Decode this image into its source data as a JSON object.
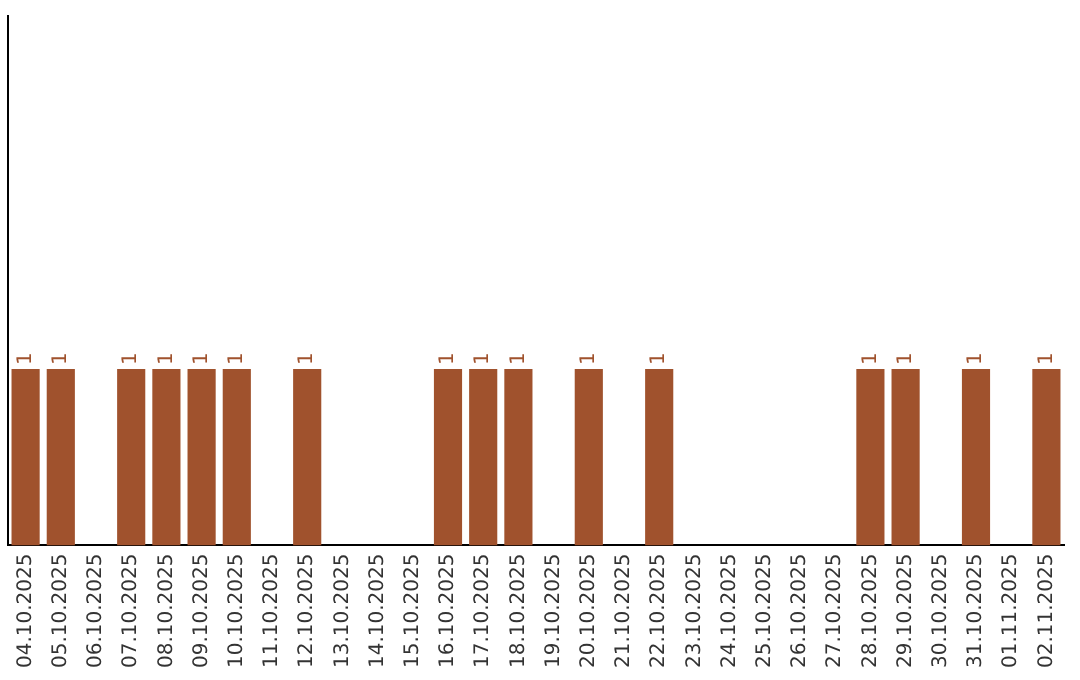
{
  "chart_data": {
    "type": "bar",
    "categories": [
      "04.10.2025",
      "05.10.2025",
      "06.10.2025",
      "07.10.2025",
      "08.10.2025",
      "09.10.2025",
      "10.10.2025",
      "11.10.2025",
      "12.10.2025",
      "13.10.2025",
      "14.10.2025",
      "15.10.2025",
      "16.10.2025",
      "17.10.2025",
      "18.10.2025",
      "19.10.2025",
      "20.10.2025",
      "21.10.2025",
      "22.10.2025",
      "23.10.2025",
      "24.10.2025",
      "25.10.2025",
      "26.10.2025",
      "27.10.2025",
      "28.10.2025",
      "29.10.2025",
      "30.10.2025",
      "31.10.2025",
      "01.11.2025",
      "02.11.2025"
    ],
    "values": [
      1,
      1,
      0,
      1,
      1,
      1,
      1,
      0,
      1,
      0,
      0,
      0,
      1,
      1,
      1,
      0,
      1,
      0,
      1,
      0,
      0,
      0,
      0,
      0,
      1,
      1,
      0,
      1,
      0,
      1
    ],
    "value_labels": [
      "1",
      "1",
      null,
      "1",
      "1",
      "1",
      "1",
      null,
      "1",
      null,
      null,
      null,
      "1",
      "1",
      "1",
      null,
      "1",
      null,
      "1",
      null,
      null,
      null,
      null,
      null,
      "1",
      "1",
      null,
      "1",
      null,
      "1"
    ],
    "color": "#a0522d",
    "grid": false,
    "legend": false,
    "tick_labels": "x"
  }
}
